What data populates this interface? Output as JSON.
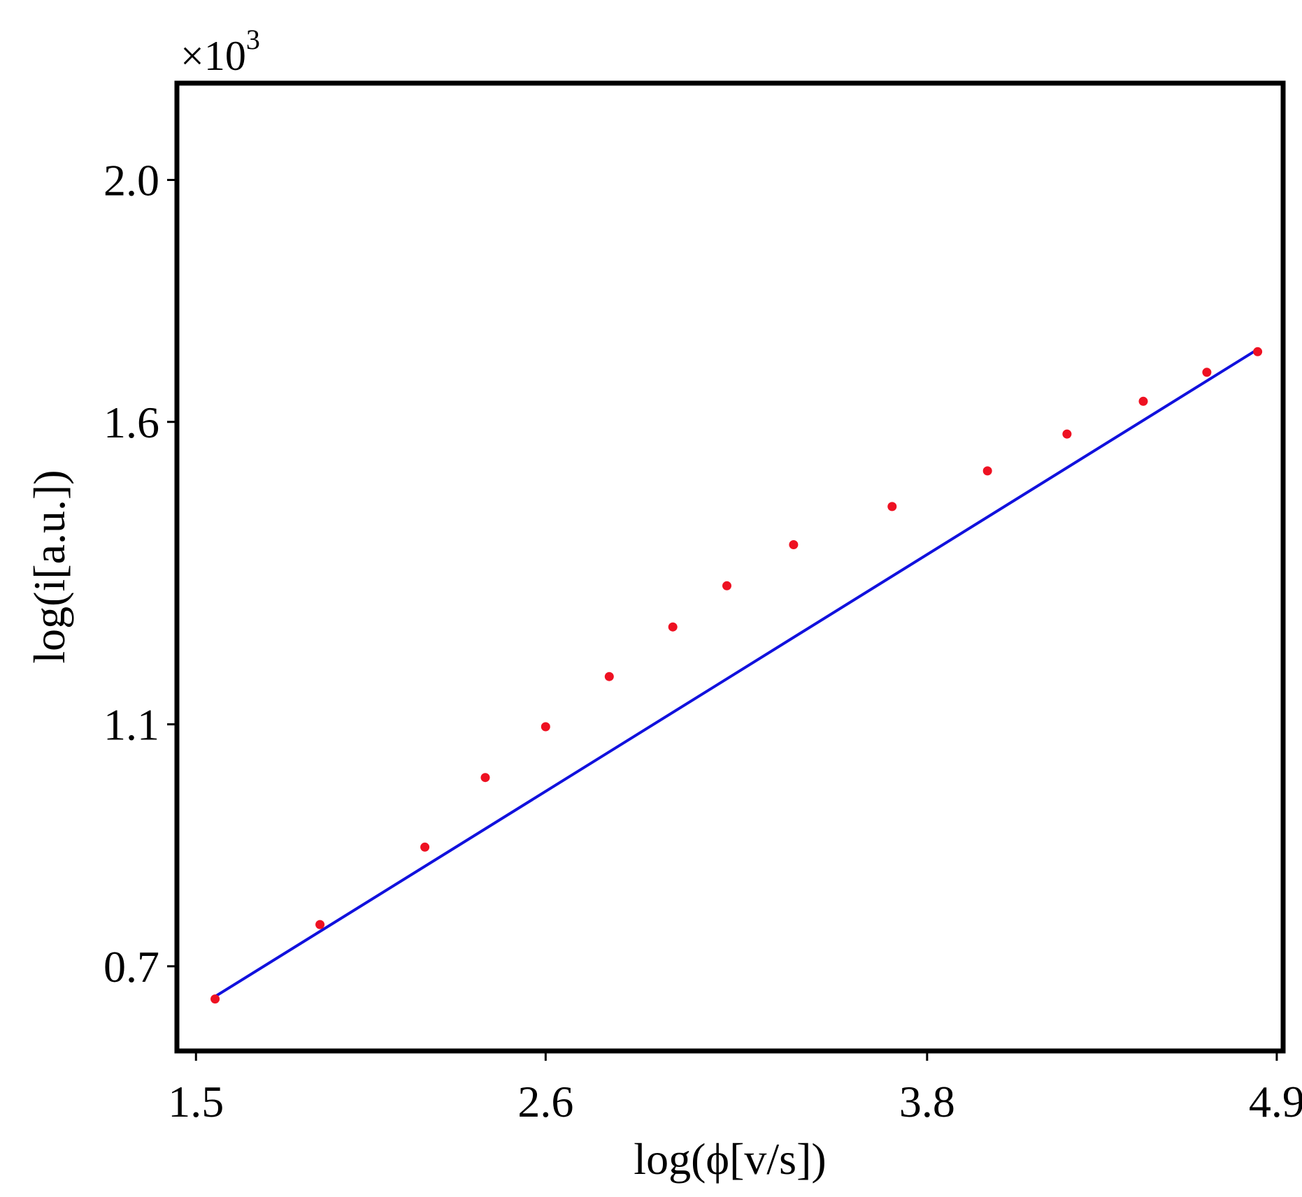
{
  "chart_data": {
    "type": "scatter",
    "xlabel": "log(ϕ[v/s])",
    "ylabel": "log(i[a.u.])",
    "y_multiplier": {
      "base": "×10",
      "exponent": "3"
    },
    "xlim": [
      1.44,
      4.92
    ],
    "ylim": [
      0.56,
      2.16
    ],
    "x_ticks": [
      {
        "value": 1.5,
        "label": "1.5"
      },
      {
        "value": 2.6,
        "label": "2.6"
      },
      {
        "value": 3.8,
        "label": "3.8"
      },
      {
        "value": 4.9,
        "label": "4.9"
      }
    ],
    "y_ticks": [
      {
        "value": 0.7,
        "label": "0.7"
      },
      {
        "value": 1.1,
        "label": "1.1"
      },
      {
        "value": 1.6,
        "label": "1.6"
      },
      {
        "value": 2.0,
        "label": "2.0"
      }
    ],
    "grid": false,
    "legend": "none",
    "series": [
      {
        "kind": "points",
        "color": "#ee1122",
        "x": [
          1.56,
          1.89,
          2.22,
          2.41,
          2.6,
          2.8,
          3.0,
          3.17,
          3.38,
          3.69,
          3.99,
          4.24,
          4.48,
          4.68,
          4.84
        ],
        "y": [
          0.646,
          0.769,
          0.897,
          1.012,
          1.096,
          1.179,
          1.261,
          1.329,
          1.397,
          1.46,
          1.519,
          1.58,
          1.634,
          1.682,
          1.716
        ]
      },
      {
        "kind": "fit-line",
        "color": "#1111dd",
        "x": [
          1.56,
          4.84
        ],
        "y": [
          0.65,
          1.72
        ]
      }
    ]
  }
}
